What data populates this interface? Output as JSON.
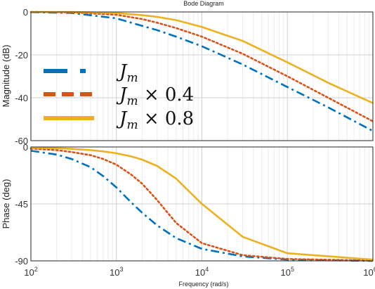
{
  "chart_data": [
    {
      "type": "line",
      "subplot": "magnitude",
      "title": "Bode Diagram",
      "ylabel": "Magnitude (dB)",
      "xlabel": "",
      "x_scale": "log",
      "xlim": [
        100,
        1000000
      ],
      "ylim": [
        -60,
        0
      ],
      "yticks": [
        "0",
        "-20",
        "-40",
        "-60"
      ],
      "grid": true,
      "legend_position": "left",
      "series": [
        {
          "name": "J_m",
          "color": "#0072BD",
          "style": "dash-dot",
          "x": [
            100,
            300,
            1000,
            2000,
            3000,
            5000,
            10000,
            30000,
            100000,
            300000,
            1000000
          ],
          "values": [
            -0.1,
            -0.5,
            -3,
            -6.5,
            -8.5,
            -11.5,
            -16,
            -24.5,
            -35,
            -44.5,
            -55.5
          ]
        },
        {
          "name": "J_m × 0.4",
          "color": "#D95319",
          "style": "dotted",
          "x": [
            100,
            300,
            1000,
            2000,
            3000,
            5000,
            10000,
            30000,
            100000,
            300000,
            1000000
          ],
          "values": [
            0,
            -0.2,
            -1.3,
            -3.3,
            -5,
            -7.5,
            -11.5,
            -19.5,
            -30,
            -40,
            -51
          ]
        },
        {
          "name": "J_m × 0.8",
          "color": "#EDB120",
          "style": "solid",
          "x": [
            100,
            300,
            1000,
            2000,
            3000,
            5000,
            10000,
            30000,
            100000,
            300000,
            1000000
          ],
          "values": [
            0,
            0,
            -0.5,
            -1.5,
            -2.3,
            -3.8,
            -7,
            -13.5,
            -23.5,
            -33,
            -42.5
          ]
        }
      ],
      "legend_labels": [
        {
          "base": "J",
          "sub": "m",
          "suffix": ""
        },
        {
          "base": "J",
          "sub": "m",
          "suffix": " × 0.4"
        },
        {
          "base": "J",
          "sub": "m",
          "suffix": " × 0.8"
        }
      ]
    },
    {
      "type": "line",
      "subplot": "phase",
      "title": "",
      "ylabel": "Phase (deg)",
      "xlabel": "Frequency  (rad/s)",
      "x_scale": "log",
      "xlim": [
        100,
        1000000
      ],
      "ylim": [
        -90,
        0
      ],
      "xticks": [
        {
          "base": "10",
          "exp": "2"
        },
        {
          "base": "10",
          "exp": "3"
        },
        {
          "base": "10",
          "exp": "4"
        },
        {
          "base": "10",
          "exp": "5"
        },
        {
          "base": "10",
          "exp": "6"
        }
      ],
      "yticks": [
        "0",
        "-45",
        "-90"
      ],
      "grid": true,
      "series": [
        {
          "name": "J_m",
          "color": "#0072BD",
          "style": "dash-dot",
          "x": [
            100,
            200,
            300,
            500,
            700,
            1000,
            1500,
            2000,
            3000,
            5000,
            10000,
            30000,
            100000,
            1000000
          ],
          "values": [
            -3,
            -6,
            -9.5,
            -16,
            -23,
            -32,
            -44,
            -52,
            -62,
            -72,
            -80.5,
            -86.5,
            -89,
            -90
          ]
        },
        {
          "name": "J_m × 0.4",
          "color": "#D95319",
          "style": "dotted",
          "x": [
            100,
            200,
            300,
            500,
            700,
            1000,
            1500,
            2000,
            3000,
            5000,
            10000,
            30000,
            100000,
            1000000
          ],
          "values": [
            -1.3,
            -2.5,
            -4,
            -6.5,
            -9.5,
            -14,
            -22,
            -29,
            -42,
            -60,
            -76,
            -85.5,
            -88.5,
            -89.8
          ]
        },
        {
          "name": "J_m × 0.8",
          "color": "#EDB120",
          "style": "solid",
          "x": [
            100,
            200,
            300,
            500,
            700,
            1000,
            1500,
            2000,
            3000,
            5000,
            10000,
            30000,
            100000,
            1000000
          ],
          "values": [
            -0.5,
            -1,
            -1.5,
            -2.5,
            -3.5,
            -5,
            -7.5,
            -10,
            -15,
            -25,
            -45,
            -71,
            -84,
            -89
          ]
        }
      ]
    }
  ]
}
